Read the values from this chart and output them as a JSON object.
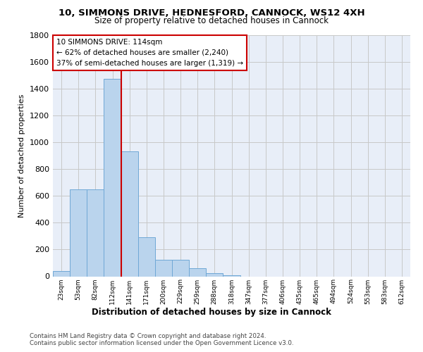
{
  "title_line1": "10, SIMMONS DRIVE, HEDNESFORD, CANNOCK, WS12 4XH",
  "title_line2": "Size of property relative to detached houses in Cannock",
  "xlabel": "Distribution of detached houses by size in Cannock",
  "ylabel": "Number of detached properties",
  "categories": [
    "23sqm",
    "53sqm",
    "82sqm",
    "112sqm",
    "141sqm",
    "171sqm",
    "200sqm",
    "229sqm",
    "259sqm",
    "288sqm",
    "318sqm",
    "347sqm",
    "377sqm",
    "406sqm",
    "435sqm",
    "465sqm",
    "494sqm",
    "524sqm",
    "553sqm",
    "583sqm",
    "612sqm"
  ],
  "values": [
    38,
    650,
    650,
    1475,
    935,
    290,
    125,
    125,
    62,
    25,
    10,
    0,
    0,
    0,
    0,
    0,
    0,
    0,
    0,
    0,
    0
  ],
  "bar_color": "#bad4ed",
  "bar_edge_color": "#6fa8d6",
  "vline_color": "#cc0000",
  "annotation_line1": "10 SIMMONS DRIVE: 114sqm",
  "annotation_line2": "← 62% of detached houses are smaller (2,240)",
  "annotation_line3": "37% of semi-detached houses are larger (1,319) →",
  "annotation_box_color": "#ffffff",
  "annotation_border_color": "#cc0000",
  "grid_color": "#c8c8c8",
  "background_color": "#e8eef8",
  "footer_text": "Contains HM Land Registry data © Crown copyright and database right 2024.\nContains public sector information licensed under the Open Government Licence v3.0.",
  "ylim": [
    0,
    1800
  ],
  "yticks": [
    0,
    200,
    400,
    600,
    800,
    1000,
    1200,
    1400,
    1600,
    1800
  ],
  "vline_index": 3.5
}
